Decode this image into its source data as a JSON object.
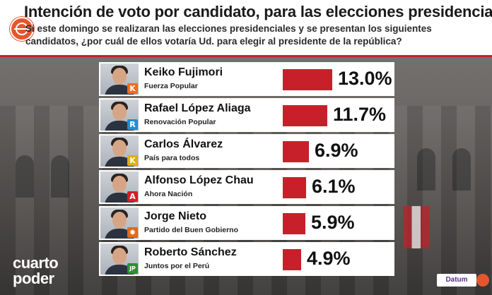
{
  "header": {
    "title": "Intención de voto por candidato, para las elecciones presidenciales",
    "question": "Si este domingo se realizaran las elecciones presidenciales y se presentan los siguientes candidatos, ¿por cuál de ellos votaría Ud. para elegir al presidente de la república?"
  },
  "brand": {
    "line1": "cuarto",
    "line2": "poder"
  },
  "source": {
    "label": "Datum"
  },
  "colors": {
    "bar": "#c8202a",
    "accent": "#c8202a"
  },
  "chart_data": {
    "type": "bar",
    "orientation": "horizontal",
    "title": "Intención de voto por candidato, para las elecciones presidenciales",
    "categories": [
      "Keiko Fujimori",
      "Rafael López Aliaga",
      "Carlos Álvarez",
      "Alfonso López Chau",
      "Jorge Nieto",
      "Roberto Sánchez"
    ],
    "parties": [
      "Fuerza Popular",
      "Renovación Popular",
      "País para todos",
      "Ahora Nación",
      "Partido del Buen Gobierno",
      "Juntos por el  Perú"
    ],
    "party_badges": [
      {
        "letter": "K",
        "color": "#f26a21"
      },
      {
        "letter": "R",
        "color": "#1e8fd5"
      },
      {
        "letter": "K",
        "color": "#e0b000"
      },
      {
        "letter": "A",
        "color": "#d11f2a"
      },
      {
        "letter": "✹",
        "color": "#e06a1a"
      },
      {
        "letter": "JP",
        "color": "#2f8f2f"
      }
    ],
    "values": [
      13.0,
      11.7,
      6.9,
      6.1,
      5.9,
      4.9
    ],
    "labels": [
      "13.0%",
      "11.7%",
      "6.9%",
      "6.1%",
      "5.9%",
      "4.9%"
    ],
    "xlim": [
      0,
      13.0
    ],
    "unit": "%"
  }
}
